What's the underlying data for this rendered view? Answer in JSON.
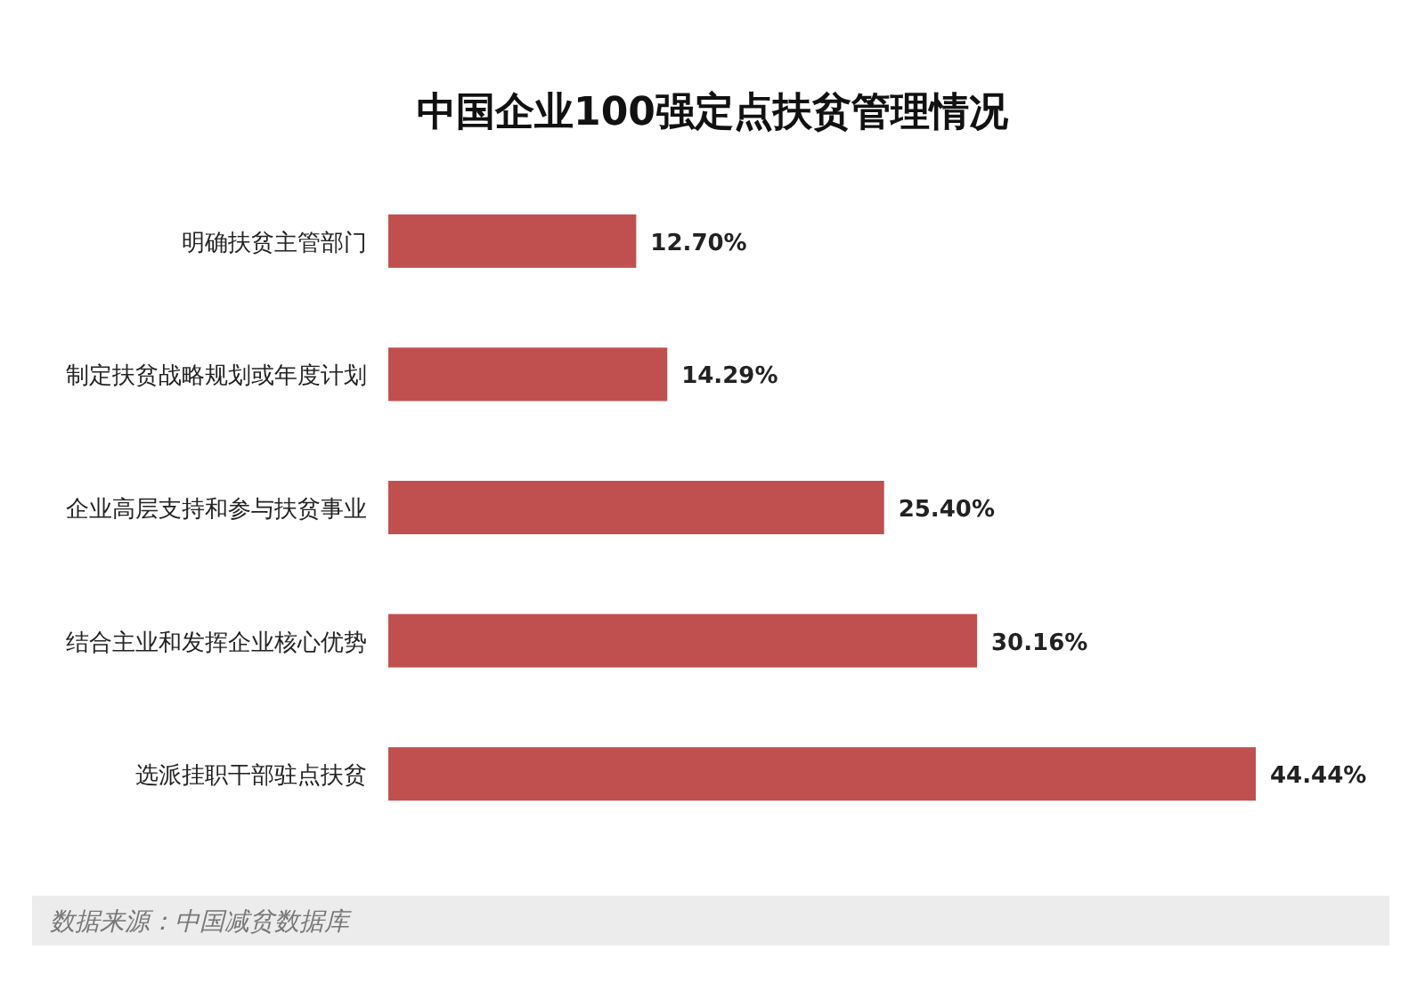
{
  "chart_data": {
    "type": "bar",
    "orientation": "horizontal",
    "title": "中国企业100强定点扶贫管理情况",
    "categories": [
      "明确扶贫主管部门",
      "制定扶贫战略规划或年度计划",
      "企业高层支持和参与扶贫事业",
      "结合主业和发挥企业核心优势",
      "选派挂职干部驻点扶贫"
    ],
    "values": [
      12.7,
      14.29,
      25.4,
      30.16,
      44.44
    ],
    "value_labels": [
      "12.70%",
      "14.29%",
      "25.40%",
      "30.16%",
      "44.44%"
    ],
    "color": "#c0504f",
    "annotations": [
      "数据来源：中国减贫数据库"
    ]
  }
}
